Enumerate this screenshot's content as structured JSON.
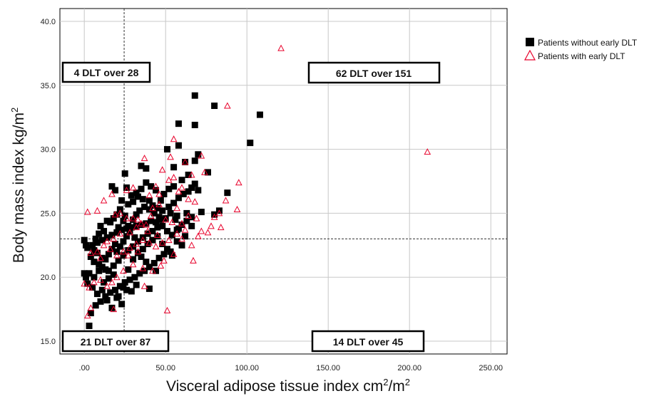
{
  "chart_data": {
    "type": "scatter",
    "title": "",
    "xlabel": {
      "base": "Visceral adipose tissue index cm",
      "sup1": "2",
      "mid": "/m",
      "sup2": "2"
    },
    "ylabel": {
      "base": "Body mass index kg/m",
      "sup": "2"
    },
    "xlim": [
      -15,
      260
    ],
    "ylim": [
      14,
      41
    ],
    "x_ticks": [
      0,
      50,
      100,
      150,
      200,
      250
    ],
    "x_tick_labels": [
      ".00",
      "50.00",
      "100.00",
      "150.00",
      "200.00",
      "250.00"
    ],
    "y_ticks": [
      15,
      20,
      25,
      30,
      35,
      40
    ],
    "y_tick_labels": [
      "15.0",
      "20.0",
      "25.0",
      "30.0",
      "35.0",
      "40.0"
    ],
    "grid": true,
    "reference_lines": {
      "x": 24.5,
      "y": 23.0,
      "style": "dashed"
    },
    "legend": {
      "placement": "top-right outside"
    },
    "quadrant_labels": [
      {
        "text": "4 DLT over 28",
        "position": "top-left"
      },
      {
        "text": "62 DLT over 151",
        "position": "top-right"
      },
      {
        "text": "21 DLT over 87",
        "position": "bottom-left"
      },
      {
        "text": "14 DLT over 45",
        "position": "bottom-right"
      }
    ],
    "series": [
      {
        "name": "Patients without early DLT",
        "color": "#000000",
        "marker": "filled-square",
        "points": [
          [
            68,
            34.2
          ],
          [
            80,
            33.4
          ],
          [
            108,
            32.7
          ],
          [
            58,
            32.0
          ],
          [
            68,
            31.9
          ],
          [
            102,
            30.5
          ],
          [
            58,
            30.3
          ],
          [
            51,
            30.0
          ],
          [
            70,
            29.6
          ],
          [
            68,
            29.1
          ],
          [
            62,
            29.0
          ],
          [
            55,
            28.6
          ],
          [
            35,
            28.7
          ],
          [
            38,
            28.5
          ],
          [
            76,
            28.2
          ],
          [
            25,
            28.1
          ],
          [
            88,
            26.6
          ],
          [
            83,
            25.2
          ],
          [
            80,
            24.9
          ],
          [
            72,
            25.1
          ],
          [
            17,
            27.1
          ],
          [
            19,
            26.8
          ],
          [
            23,
            26.0
          ],
          [
            27,
            25.7
          ],
          [
            30,
            25.9
          ],
          [
            33,
            26.3
          ],
          [
            36,
            26.1
          ],
          [
            40,
            26.0
          ],
          [
            42,
            25.6
          ],
          [
            45,
            25.4
          ],
          [
            48,
            25.2
          ],
          [
            52,
            25.5
          ],
          [
            55,
            25.8
          ],
          [
            58,
            26.2
          ],
          [
            61,
            26.5
          ],
          [
            64,
            26.7
          ],
          [
            66,
            27.0
          ],
          [
            68,
            27.3
          ],
          [
            70,
            26.8
          ],
          [
            63,
            25.0
          ],
          [
            57,
            24.8
          ],
          [
            50,
            24.6
          ],
          [
            47,
            24.5
          ],
          [
            44,
            24.3
          ],
          [
            41,
            24.4
          ],
          [
            38,
            24.2
          ],
          [
            35,
            24.1
          ],
          [
            32,
            24.0
          ],
          [
            29,
            23.9
          ],
          [
            26,
            23.8
          ],
          [
            23,
            23.7
          ],
          [
            20,
            23.5
          ],
          [
            17,
            23.3
          ],
          [
            14,
            23.1
          ],
          [
            11,
            22.9
          ],
          [
            8,
            22.7
          ],
          [
            5,
            22.5
          ],
          [
            2,
            22.3
          ],
          [
            0,
            22.9
          ],
          [
            1,
            22.5
          ],
          [
            4,
            21.6
          ],
          [
            6,
            21.2
          ],
          [
            9,
            21.0
          ],
          [
            11,
            20.8
          ],
          [
            13,
            20.6
          ],
          [
            15,
            20.5
          ],
          [
            18,
            20.9
          ],
          [
            21,
            21.3
          ],
          [
            24,
            21.7
          ],
          [
            27,
            22.1
          ],
          [
            30,
            22.4
          ],
          [
            33,
            22.8
          ],
          [
            36,
            23.1
          ],
          [
            39,
            23.4
          ],
          [
            42,
            23.6
          ],
          [
            45,
            23.9
          ],
          [
            48,
            24.0
          ],
          [
            51,
            23.6
          ],
          [
            54,
            23.3
          ],
          [
            57,
            22.8
          ],
          [
            60,
            22.5
          ],
          [
            53,
            22.0
          ],
          [
            49,
            21.8
          ],
          [
            46,
            21.5
          ],
          [
            43,
            21.1
          ],
          [
            40,
            20.8
          ],
          [
            37,
            20.5
          ],
          [
            34,
            20.3
          ],
          [
            31,
            20.0
          ],
          [
            28,
            19.8
          ],
          [
            25,
            19.6
          ],
          [
            22,
            19.3
          ],
          [
            19,
            19.0
          ],
          [
            16,
            18.8
          ],
          [
            13,
            18.5
          ],
          [
            10,
            18.1
          ],
          [
            7,
            17.8
          ],
          [
            4,
            17.2
          ],
          [
            3,
            16.2
          ],
          [
            2,
            19.5
          ],
          [
            5,
            19.2
          ],
          [
            8,
            18.7
          ],
          [
            12,
            19.6
          ],
          [
            15,
            19.9
          ],
          [
            18,
            20.2
          ],
          [
            21,
            18.5
          ],
          [
            24,
            19.2
          ],
          [
            27,
            20.6
          ],
          [
            30,
            21.4
          ],
          [
            33,
            21.9
          ],
          [
            36,
            22.2
          ],
          [
            39,
            22.6
          ],
          [
            42,
            22.9
          ],
          [
            45,
            23.2
          ],
          [
            48,
            22.6
          ],
          [
            51,
            22.2
          ],
          [
            54,
            21.7
          ],
          [
            57,
            23.7
          ],
          [
            60,
            24.1
          ],
          [
            63,
            24.4
          ],
          [
            66,
            24.7
          ],
          [
            20,
            22.0
          ],
          [
            22,
            22.4
          ],
          [
            24,
            22.8
          ],
          [
            26,
            23.2
          ],
          [
            28,
            23.6
          ],
          [
            30,
            24.5
          ],
          [
            32,
            24.9
          ],
          [
            34,
            25.2
          ],
          [
            37,
            25.5
          ],
          [
            40,
            25.3
          ],
          [
            43,
            25.0
          ],
          [
            46,
            24.7
          ],
          [
            49,
            26.5
          ],
          [
            52,
            26.9
          ],
          [
            55,
            27.1
          ],
          [
            16,
            24.3
          ],
          [
            18,
            24.6
          ],
          [
            20,
            24.9
          ],
          [
            22,
            25.3
          ],
          [
            25,
            24.8
          ],
          [
            12,
            23.6
          ],
          [
            10,
            24.0
          ],
          [
            14,
            24.4
          ],
          [
            9,
            20.5
          ],
          [
            6,
            20.0
          ],
          [
            3,
            20.3
          ],
          [
            0,
            20.3
          ],
          [
            1,
            20.0
          ],
          [
            11,
            19.0
          ],
          [
            14,
            18.2
          ],
          [
            17,
            17.6
          ],
          [
            20,
            18.4
          ],
          [
            23,
            17.9
          ],
          [
            26,
            19.0
          ],
          [
            29,
            18.9
          ],
          [
            32,
            19.4
          ],
          [
            40,
            19.1
          ],
          [
            44,
            20.5
          ],
          [
            38,
            21.2
          ],
          [
            35,
            21.6
          ],
          [
            31,
            23.1
          ],
          [
            27,
            24.0
          ],
          [
            24,
            24.4
          ],
          [
            21,
            23.9
          ],
          [
            19,
            22.6
          ],
          [
            17,
            22.2
          ],
          [
            15,
            21.8
          ],
          [
            13,
            21.4
          ],
          [
            11,
            21.5
          ],
          [
            8,
            21.9
          ],
          [
            6,
            22.1
          ],
          [
            7,
            23.0
          ],
          [
            9,
            23.4
          ],
          [
            60,
            27.6
          ],
          [
            64,
            28.0
          ],
          [
            66,
            24.0
          ],
          [
            62,
            23.2
          ],
          [
            58,
            23.8
          ],
          [
            56,
            24.5
          ],
          [
            53,
            25.0
          ],
          [
            47,
            26.0
          ],
          [
            44,
            26.8
          ],
          [
            41,
            27.1
          ],
          [
            38,
            27.4
          ],
          [
            35,
            26.9
          ],
          [
            32,
            26.6
          ],
          [
            29,
            26.4
          ],
          [
            26,
            27.0
          ]
        ]
      },
      {
        "name": "Patients with early DLT",
        "color": "#e8002a",
        "marker": "open-triangle",
        "points": [
          [
            121,
            37.9
          ],
          [
            211,
            29.8
          ],
          [
            88,
            33.4
          ],
          [
            55,
            30.8
          ],
          [
            53,
            29.4
          ],
          [
            72,
            29.5
          ],
          [
            62,
            29.0
          ],
          [
            37,
            29.3
          ],
          [
            48,
            28.4
          ],
          [
            74,
            28.2
          ],
          [
            66,
            28.0
          ],
          [
            55,
            27.8
          ],
          [
            52,
            27.6
          ],
          [
            95,
            27.4
          ],
          [
            87,
            26.0
          ],
          [
            60,
            27.0
          ],
          [
            58,
            26.7
          ],
          [
            44,
            27.1
          ],
          [
            30,
            27.0
          ],
          [
            26,
            26.8
          ],
          [
            17,
            26.5
          ],
          [
            12,
            26.0
          ],
          [
            40,
            26.4
          ],
          [
            46,
            26.5
          ],
          [
            64,
            26.1
          ],
          [
            68,
            25.9
          ],
          [
            94,
            25.3
          ],
          [
            83,
            25.0
          ],
          [
            80,
            24.7
          ],
          [
            2,
            25.1
          ],
          [
            8,
            25.2
          ],
          [
            19,
            24.9
          ],
          [
            22,
            25.0
          ],
          [
            30,
            24.6
          ],
          [
            33,
            24.5
          ],
          [
            41,
            24.8
          ],
          [
            50,
            24.5
          ],
          [
            54,
            24.3
          ],
          [
            60,
            24.2
          ],
          [
            78,
            24.0
          ],
          [
            84,
            23.9
          ],
          [
            76,
            23.5
          ],
          [
            70,
            23.2
          ],
          [
            60,
            23.0
          ],
          [
            52,
            22.9
          ],
          [
            48,
            22.7
          ],
          [
            44,
            22.4
          ],
          [
            40,
            22.7
          ],
          [
            36,
            22.9
          ],
          [
            32,
            22.6
          ],
          [
            28,
            22.3
          ],
          [
            24,
            22.0
          ],
          [
            20,
            21.7
          ],
          [
            16,
            22.2
          ],
          [
            12,
            22.5
          ],
          [
            8,
            22.0
          ],
          [
            4,
            21.9
          ],
          [
            66,
            22.5
          ],
          [
            67,
            21.3
          ],
          [
            55,
            21.8
          ],
          [
            49,
            21.3
          ],
          [
            47,
            20.9
          ],
          [
            42,
            20.5
          ],
          [
            36,
            20.7
          ],
          [
            30,
            21.0
          ],
          [
            24,
            20.5
          ],
          [
            20,
            20.0
          ],
          [
            17,
            19.6
          ],
          [
            14,
            19.3
          ],
          [
            10,
            19.8
          ],
          [
            6,
            19.6
          ],
          [
            3,
            19.2
          ],
          [
            0,
            19.5
          ],
          [
            4,
            17.6
          ],
          [
            2,
            17.0
          ],
          [
            18,
            17.5
          ],
          [
            37,
            19.3
          ],
          [
            51,
            17.4
          ],
          [
            27,
            21.7
          ],
          [
            33,
            22.0
          ],
          [
            39,
            23.6
          ],
          [
            45,
            23.3
          ],
          [
            57,
            23.4
          ],
          [
            62,
            23.7
          ],
          [
            46,
            25.7
          ],
          [
            42,
            25.4
          ],
          [
            38,
            24.1
          ],
          [
            35,
            24.2
          ],
          [
            32,
            23.9
          ],
          [
            28,
            23.5
          ],
          [
            26,
            24.6
          ],
          [
            22,
            23.4
          ],
          [
            18,
            23.0
          ],
          [
            14,
            22.8
          ],
          [
            10,
            21.5
          ],
          [
            57,
            25.4
          ],
          [
            64,
            24.8
          ],
          [
            69,
            24.6
          ],
          [
            72,
            23.6
          ]
        ]
      }
    ]
  }
}
